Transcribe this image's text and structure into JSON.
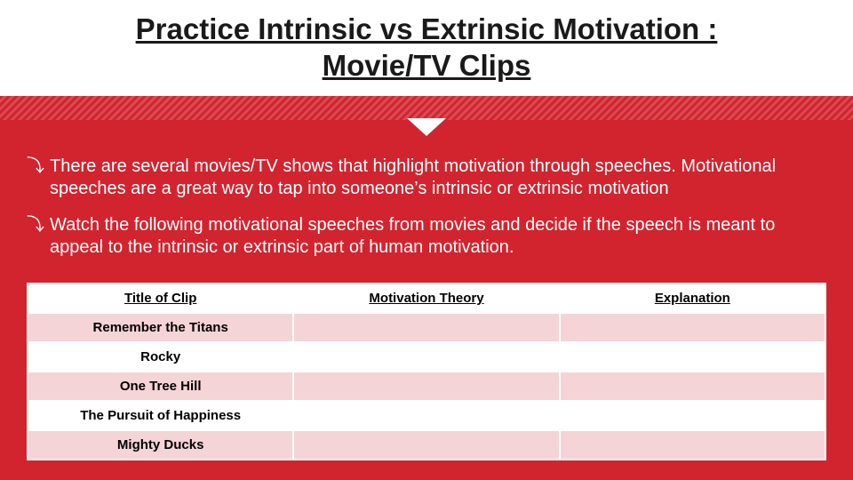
{
  "colors": {
    "slide_bg": "#d1242f",
    "header_bg": "#ffffff",
    "stripe_a": "#d1242f",
    "stripe_b": "#da4a53",
    "text_dark": "#1a1a1a",
    "text_light": "#ffffff",
    "row_alt": "#f5d4d7"
  },
  "header": {
    "title_line1": "Practice Intrinsic vs Extrinsic Motivation :",
    "title_line2": "Movie/TV Clips",
    "title_fontsize": 33,
    "underline": true
  },
  "bullets": [
    "There are several movies/TV shows that highlight motivation through speeches. Motivational speeches are a great way to tap into someone’s intrinsic or extrinsic motivation",
    "Watch the following motivational speeches from movies and decide if the speech is meant to appeal to the intrinsic or extrinsic part of human motivation."
  ],
  "bullet_symbol": "⤵",
  "table": {
    "columns": [
      "Title of Clip",
      "Motivation Theory",
      "Explanation"
    ],
    "rows": [
      [
        "Remember the Titans",
        "",
        ""
      ],
      [
        "Rocky",
        "",
        ""
      ],
      [
        "One Tree Hill",
        "",
        ""
      ],
      [
        "The Pursuit of Happiness",
        "",
        ""
      ],
      [
        "Mighty Ducks",
        "",
        ""
      ]
    ],
    "header_underline": true,
    "alt_row_color": "#f5d4d7",
    "cell_fontsize": 15
  }
}
